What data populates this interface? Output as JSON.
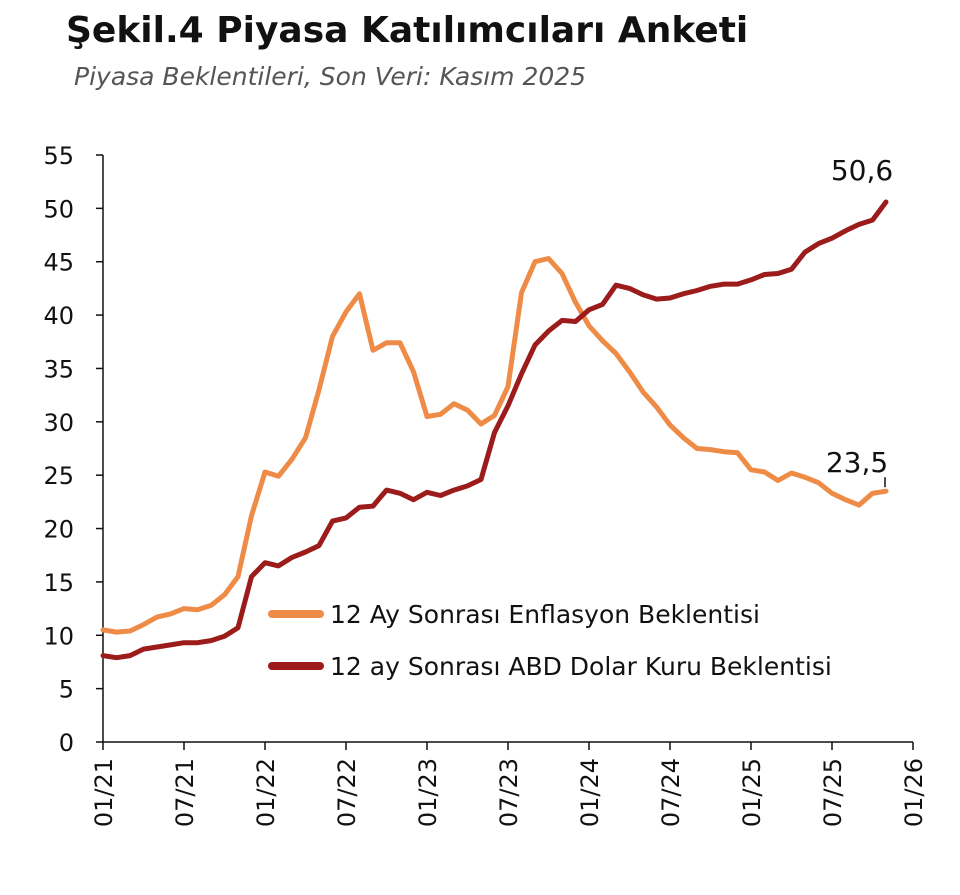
{
  "header": {
    "title": "Şekil.4 Piyasa Katılımcıları Anketi",
    "subtitle": "Piyasa Beklentileri, Son Veri: Kasım 2025"
  },
  "chart_data": {
    "type": "line",
    "title": "Şekil.4 Piyasa Katılımcıları Anketi",
    "subtitle": "Piyasa Beklentileri, Son Veri: Kasım 2025",
    "xlabel": "",
    "ylabel": "",
    "ylim": [
      0,
      55
    ],
    "yticks": [
      0,
      5,
      10,
      15,
      20,
      25,
      30,
      35,
      40,
      45,
      50,
      55
    ],
    "xticks": [
      "01/21",
      "07/21",
      "01/22",
      "07/22",
      "01/23",
      "07/23",
      "01/24",
      "07/24",
      "01/25",
      "07/25",
      "01/26"
    ],
    "x": [
      "01/21",
      "02/21",
      "03/21",
      "04/21",
      "05/21",
      "06/21",
      "07/21",
      "08/21",
      "09/21",
      "10/21",
      "11/21",
      "12/21",
      "01/22",
      "02/22",
      "03/22",
      "04/22",
      "05/22",
      "06/22",
      "07/22",
      "08/22",
      "09/22",
      "10/22",
      "11/22",
      "12/22",
      "01/23",
      "02/23",
      "03/23",
      "04/23",
      "05/23",
      "06/23",
      "07/23",
      "08/23",
      "09/23",
      "10/23",
      "11/23",
      "12/23",
      "01/24",
      "02/24",
      "03/24",
      "04/24",
      "05/24",
      "06/24",
      "07/24",
      "08/24",
      "09/24",
      "10/24",
      "11/24",
      "12/24",
      "01/25",
      "02/25",
      "03/25",
      "04/25",
      "05/25",
      "06/25",
      "07/25",
      "08/25",
      "09/25",
      "10/25",
      "11/25"
    ],
    "grid": false,
    "legend_position": "center-right",
    "series": [
      {
        "name": "12 Ay Sonrası Enflasyon Beklentisi",
        "color": "#ee8c47",
        "values": [
          10.5,
          10.3,
          10.4,
          11.0,
          11.7,
          12.0,
          12.5,
          12.4,
          12.8,
          13.8,
          15.5,
          21.2,
          25.3,
          24.9,
          26.5,
          28.5,
          33.0,
          38.0,
          40.3,
          42.0,
          36.7,
          37.4,
          37.4,
          34.7,
          30.5,
          30.7,
          31.7,
          31.1,
          29.8,
          30.6,
          33.3,
          42.1,
          45.0,
          45.3,
          43.9,
          41.2,
          39.0,
          37.6,
          36.4,
          34.7,
          32.8,
          31.4,
          29.7,
          28.5,
          27.5,
          27.4,
          27.2,
          27.1,
          25.5,
          25.3,
          24.5,
          25.2,
          24.8,
          24.3,
          23.3,
          22.7,
          22.2,
          23.3,
          23.5
        ]
      },
      {
        "name": "12 ay Sonrası ABD Dolar Kuru Beklentisi",
        "color": "#9b1c1a",
        "values": [
          8.1,
          7.9,
          8.1,
          8.7,
          8.9,
          9.1,
          9.3,
          9.3,
          9.5,
          9.9,
          10.7,
          15.5,
          16.8,
          16.5,
          17.3,
          17.8,
          18.4,
          20.7,
          21.0,
          22.0,
          22.1,
          23.6,
          23.3,
          22.7,
          23.4,
          23.1,
          23.6,
          24.0,
          24.6,
          29.0,
          31.5,
          34.5,
          37.2,
          38.5,
          39.5,
          39.4,
          40.5,
          41.0,
          42.8,
          42.5,
          41.9,
          41.5,
          41.6,
          42.0,
          42.3,
          42.7,
          42.9,
          42.9,
          43.3,
          43.8,
          43.9,
          44.3,
          45.9,
          46.7,
          47.2,
          47.9,
          48.5,
          48.9,
          50.6
        ]
      }
    ],
    "annotations": [
      {
        "series": 1,
        "index": 58,
        "text": "50,6"
      },
      {
        "series": 0,
        "index": 58,
        "text": "23,5"
      }
    ]
  }
}
